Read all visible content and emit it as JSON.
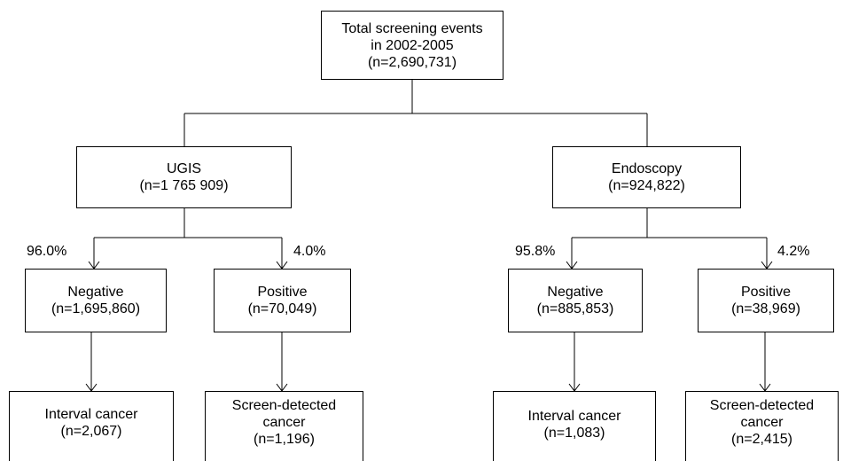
{
  "root": {
    "line1": "Total screening events",
    "line2": "in 2002-2005",
    "line3": "(n=2,690,731)"
  },
  "ugis": {
    "title": "UGIS",
    "count": "(n=1 765 909)",
    "negative": {
      "pct": "96.0%",
      "title": "Negative",
      "count": "(n=1,695,860)",
      "outcome": {
        "line1": "Interval cancer",
        "line2": "(n=2,067)"
      }
    },
    "positive": {
      "pct": "4.0%",
      "title": "Positive",
      "count": "(n=70,049)",
      "outcome": {
        "line1": "Screen-detected",
        "line2": "cancer",
        "line3": "(n=1,196)"
      }
    }
  },
  "endoscopy": {
    "title": "Endoscopy",
    "count": "(n=924,822)",
    "negative": {
      "pct": "95.8%",
      "title": "Negative",
      "count": "(n=885,853)",
      "outcome": {
        "line1": "Interval cancer",
        "line2": "(n=1,083)"
      }
    },
    "positive": {
      "pct": "4.2%",
      "title": "Positive",
      "count": "(n=38,969)",
      "outcome": {
        "line1": "Screen-detected",
        "line2": "cancer",
        "line3": "(n=2,415)"
      }
    }
  }
}
